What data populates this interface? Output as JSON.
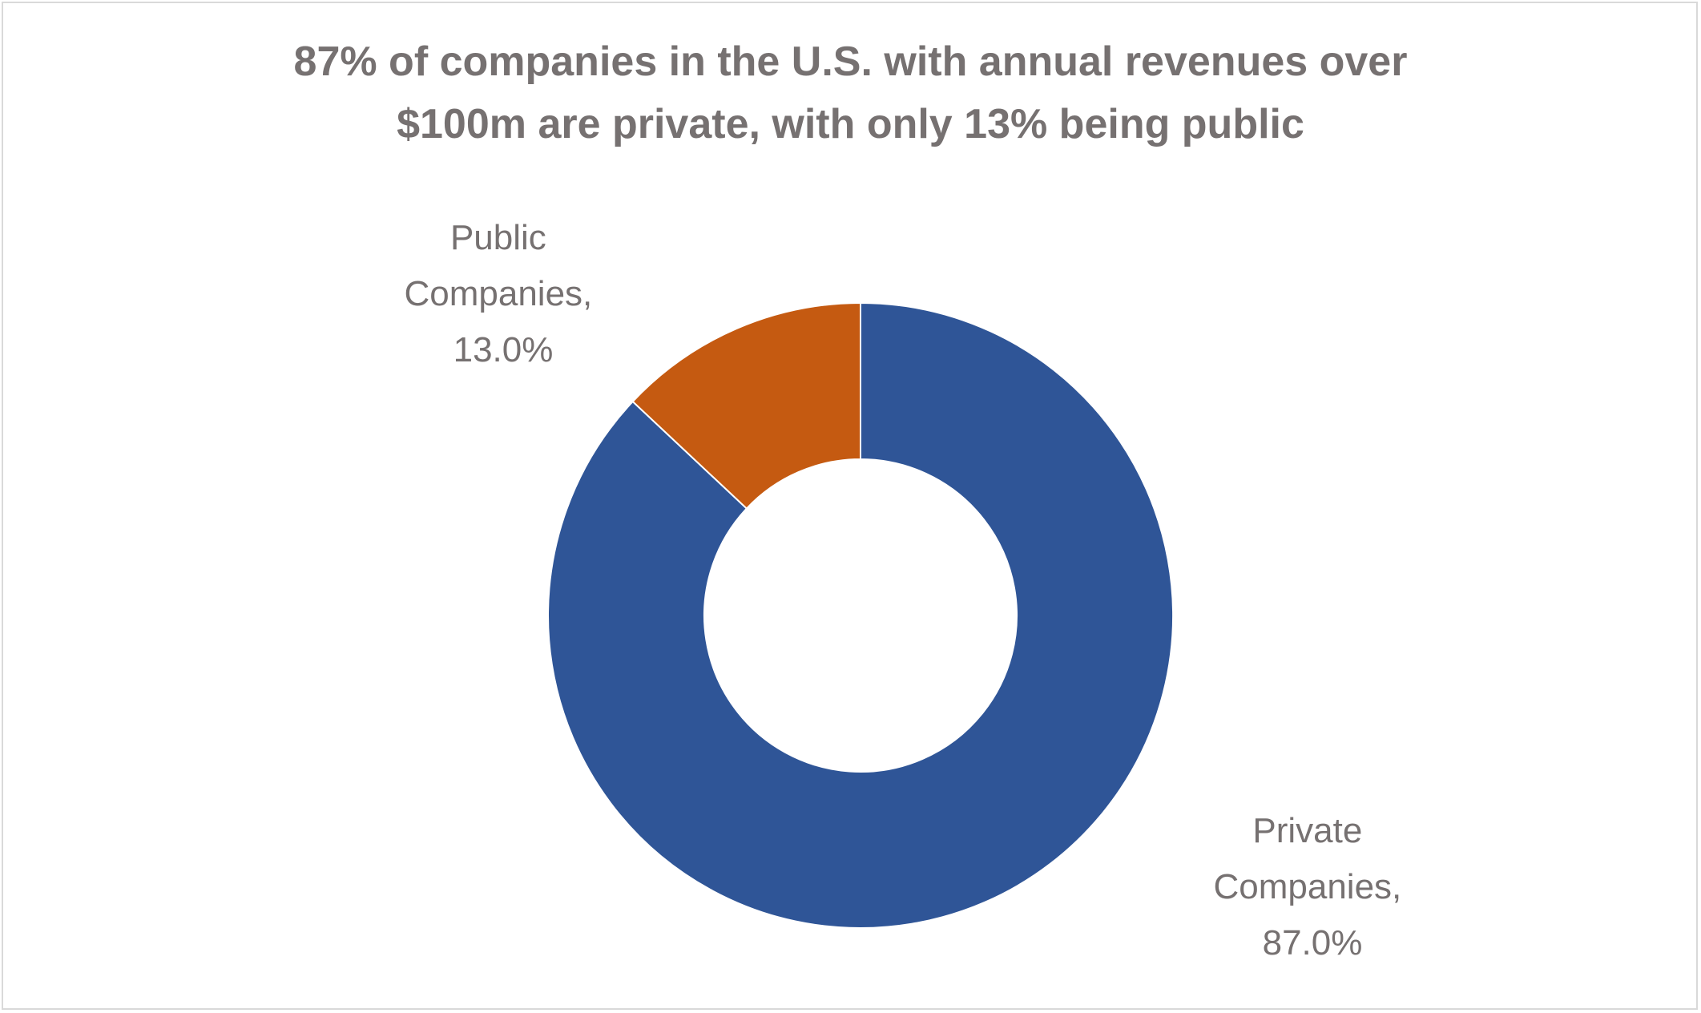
{
  "chart_data": {
    "type": "pie",
    "variant": "donut",
    "title_lines": [
      "87% of companies in the U.S. with annual revenues over",
      "$100m are private, with only 13% being public"
    ],
    "categories": [
      "Private Companies",
      "Public Companies"
    ],
    "values": [
      87.0,
      13.0
    ],
    "data_labels": [
      [
        "Private",
        "Companies,",
        "87.0%"
      ],
      [
        "Public",
        "Companies,",
        "13.0%"
      ]
    ],
    "colors": [
      "#2f5597",
      "#c55a11"
    ],
    "legend": "none"
  }
}
